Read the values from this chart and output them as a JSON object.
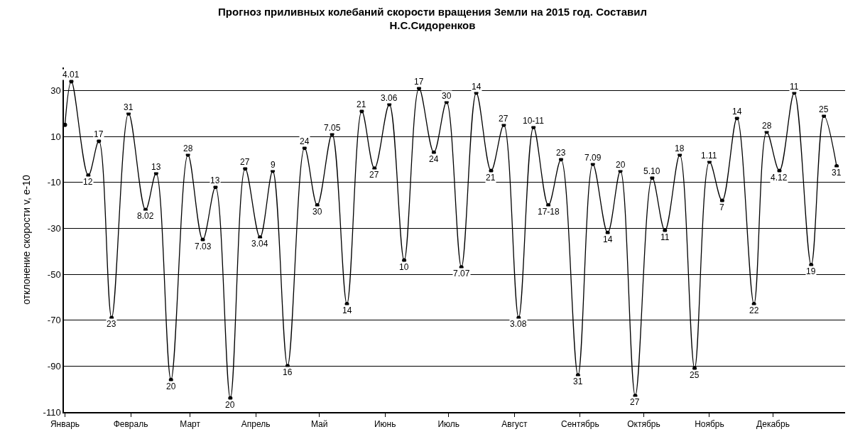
{
  "chart_data": {
    "type": "line",
    "title": "Прогноз приливных колебаний скорости вращения Земли на 2015 год. Составил\nН.С.Сидоренков",
    "ylabel": "отклонение скорости v, е-10",
    "categories": [
      "Январь",
      null,
      null,
      null,
      null,
      null,
      null,
      null,
      null,
      null,
      null,
      null,
      null,
      null,
      null,
      null,
      null,
      null,
      null,
      null,
      null,
      null,
      null,
      null,
      null,
      null,
      null,
      null,
      null,
      null,
      null,
      "Февраль",
      null,
      null,
      null,
      null,
      null,
      null,
      null,
      null,
      null,
      null,
      null,
      null,
      null,
      null,
      null,
      null,
      null,
      null,
      null,
      null,
      null,
      null,
      null,
      null,
      null,
      null,
      null,
      "Март",
      null,
      null,
      null,
      null,
      null,
      null,
      null,
      null,
      null,
      null,
      null,
      null,
      null,
      null,
      null,
      null,
      null,
      null,
      null,
      null,
      null,
      null,
      null,
      null,
      null,
      null,
      null,
      null,
      null,
      null,
      "Апрель",
      null,
      null,
      null,
      null,
      null,
      null,
      null,
      null,
      null,
      null,
      null,
      null,
      null,
      null,
      null,
      null,
      null,
      null,
      null,
      null,
      null,
      null,
      null,
      null,
      null,
      null,
      null,
      null,
      null,
      "Май",
      null,
      null,
      null,
      null,
      null,
      null,
      null,
      null,
      null,
      null,
      null,
      null,
      null,
      null,
      null,
      null,
      null,
      null,
      null,
      null,
      null,
      null,
      null,
      null,
      null,
      null,
      null,
      null,
      null,
      null,
      "Июнь",
      null,
      null,
      null,
      null,
      null,
      null,
      null,
      null,
      null,
      null,
      null,
      null,
      null,
      null,
      null,
      null,
      null,
      null,
      null,
      null,
      null,
      null,
      null,
      null,
      null,
      null,
      null,
      null,
      null,
      "Июль",
      null,
      null,
      null,
      null,
      null,
      null,
      null,
      null,
      null,
      null,
      null,
      null,
      null,
      null,
      null,
      null,
      null,
      null,
      null,
      null,
      null,
      null,
      null,
      null,
      null,
      null,
      null,
      null,
      null,
      null,
      "Август",
      null,
      null,
      null,
      null,
      null,
      null,
      null,
      null,
      null,
      null,
      null,
      null,
      null,
      null,
      null,
      null,
      null,
      null,
      null,
      null,
      null,
      null,
      null,
      null,
      null,
      null,
      null,
      null,
      null,
      null,
      "Сентябрь",
      null,
      null,
      null,
      null,
      null,
      null,
      null,
      null,
      null,
      null,
      null,
      null,
      null,
      null,
      null,
      null,
      null,
      null,
      null,
      null,
      null,
      null,
      null,
      null,
      null,
      null,
      null,
      null,
      null,
      "Октябрь",
      null,
      null,
      null,
      null,
      null,
      null,
      null,
      null,
      null,
      null,
      null,
      null,
      null,
      null,
      null,
      null,
      null,
      null,
      null,
      null,
      null,
      null,
      null,
      null,
      null,
      null,
      null,
      null,
      null,
      null,
      "Ноябрь",
      null,
      null,
      null,
      null,
      null,
      null,
      null,
      null,
      null,
      null,
      null,
      null,
      null,
      null,
      null,
      null,
      null,
      null,
      null,
      null,
      null,
      null,
      null,
      null,
      null,
      null,
      null,
      null,
      null,
      "Декабрь",
      null,
      null,
      null,
      null,
      null,
      null,
      null,
      null,
      null,
      null,
      null,
      null,
      null,
      null,
      null,
      null,
      null,
      null,
      null,
      null,
      null,
      null,
      null,
      null,
      null,
      null,
      null,
      null,
      null,
      null
    ],
    "series": [
      {
        "color": "#000000",
        "values": [
          15,
          null,
          null,
          34,
          null,
          null,
          null,
          null,
          null,
          null,
          null,
          -7,
          null,
          null,
          null,
          null,
          8,
          null,
          null,
          null,
          null,
          null,
          -69,
          null,
          null,
          null,
          null,
          null,
          null,
          null,
          20,
          null,
          null,
          null,
          null,
          null,
          null,
          null,
          -22,
          null,
          null,
          null,
          null,
          -6,
          null,
          null,
          null,
          null,
          null,
          null,
          -96,
          null,
          null,
          null,
          null,
          null,
          null,
          null,
          2,
          null,
          null,
          null,
          null,
          null,
          null,
          -35,
          null,
          null,
          null,
          null,
          null,
          -12,
          null,
          null,
          null,
          null,
          null,
          null,
          -104,
          null,
          null,
          null,
          null,
          null,
          null,
          -4,
          null,
          null,
          null,
          null,
          null,
          null,
          -34,
          null,
          null,
          null,
          null,
          null,
          -5,
          null,
          null,
          null,
          null,
          null,
          null,
          -90,
          null,
          null,
          null,
          null,
          null,
          null,
          null,
          5,
          null,
          null,
          null,
          null,
          null,
          -20,
          null,
          null,
          null,
          null,
          null,
          null,
          11,
          null,
          null,
          null,
          null,
          null,
          null,
          -63,
          null,
          null,
          null,
          null,
          null,
          null,
          21,
          null,
          null,
          null,
          null,
          null,
          -4,
          null,
          null,
          null,
          null,
          null,
          null,
          24,
          null,
          null,
          null,
          null,
          null,
          null,
          -44,
          null,
          null,
          null,
          null,
          null,
          null,
          31,
          null,
          null,
          null,
          null,
          null,
          null,
          3,
          null,
          null,
          null,
          null,
          null,
          25,
          null,
          null,
          null,
          null,
          null,
          null,
          -47,
          null,
          null,
          null,
          null,
          null,
          null,
          29,
          null,
          null,
          null,
          null,
          null,
          null,
          -5,
          null,
          null,
          null,
          null,
          null,
          15,
          null,
          null,
          null,
          null,
          null,
          null,
          -69,
          null,
          null,
          null,
          null,
          null,
          null,
          14,
          null,
          null,
          null,
          null,
          null,
          null,
          -20,
          null,
          null,
          null,
          null,
          null,
          0,
          null,
          null,
          null,
          null,
          null,
          null,
          null,
          -94,
          null,
          null,
          null,
          null,
          null,
          null,
          -2,
          null,
          null,
          null,
          null,
          null,
          null,
          -32,
          null,
          null,
          null,
          null,
          null,
          -5,
          null,
          null,
          null,
          null,
          null,
          null,
          -103,
          null,
          null,
          null,
          null,
          null,
          null,
          null,
          -8,
          null,
          null,
          null,
          null,
          null,
          -31,
          null,
          null,
          null,
          null,
          null,
          null,
          2,
          null,
          null,
          null,
          null,
          null,
          null,
          -91,
          null,
          null,
          null,
          null,
          null,
          null,
          -1,
          null,
          null,
          null,
          null,
          null,
          -18,
          null,
          null,
          null,
          null,
          null,
          null,
          18,
          null,
          null,
          null,
          null,
          null,
          null,
          null,
          -63,
          null,
          null,
          null,
          null,
          null,
          12,
          null,
          null,
          null,
          null,
          null,
          -5,
          null,
          null,
          null,
          null,
          null,
          null,
          29,
          null,
          null,
          null,
          null,
          null,
          null,
          null,
          -46,
          null,
          null,
          null,
          null,
          null,
          19,
          null,
          null,
          null,
          null,
          null,
          -3
        ]
      }
    ],
    "annotations": [
      {
        "text": "4.01",
        "y": 34
      },
      {
        "text": "12",
        "y": -7
      },
      {
        "text": "17",
        "y": 8
      },
      {
        "text": "23",
        "y": -69
      },
      {
        "text": "31",
        "y": 20
      },
      {
        "text": "8.02",
        "y": -22
      },
      {
        "text": "13",
        "y": -6
      },
      {
        "text": "20",
        "y": -96
      },
      {
        "text": "28",
        "y": 2
      },
      {
        "text": "7.03",
        "y": -35
      },
      {
        "text": "13",
        "y": -12
      },
      {
        "text": "20",
        "y": -104
      },
      {
        "text": "27",
        "y": -4
      },
      {
        "text": "3.04",
        "y": -34
      },
      {
        "text": "9",
        "y": -5
      },
      {
        "text": "16",
        "y": -90
      },
      {
        "text": "24",
        "y": 5
      },
      {
        "text": "30",
        "y": -20
      },
      {
        "text": "7.05",
        "y": 11
      },
      {
        "text": "14",
        "y": -63
      },
      {
        "text": "21",
        "y": 21
      },
      {
        "text": "27",
        "y": -4
      },
      {
        "text": "3.06",
        "y": 24
      },
      {
        "text": "10",
        "y": -44
      },
      {
        "text": "17",
        "y": 31
      },
      {
        "text": "24",
        "y": 3
      },
      {
        "text": "30",
        "y": 25
      },
      {
        "text": "7.07",
        "y": -47
      },
      {
        "text": "14",
        "y": 29
      },
      {
        "text": "21",
        "y": -5
      },
      {
        "text": "27",
        "y": 15
      },
      {
        "text": "3.08",
        "y": -69
      },
      {
        "text": "10-11",
        "y": 14
      },
      {
        "text": "17-18",
        "y": -20
      },
      {
        "text": "23",
        "y": 0
      },
      {
        "text": "31",
        "y": -94
      },
      {
        "text": "7.09",
        "y": -2
      },
      {
        "text": "14",
        "y": -32
      },
      {
        "text": "20",
        "y": -5
      },
      {
        "text": "27",
        "y": -103
      },
      {
        "text": "5.10",
        "y": -8
      },
      {
        "text": "11",
        "y": -31
      },
      {
        "text": "18",
        "y": 2
      },
      {
        "text": "25",
        "y": -91
      },
      {
        "text": "1.11",
        "y": -1
      },
      {
        "text": "7",
        "y": -18
      },
      {
        "text": "14",
        "y": 18
      },
      {
        "text": "22",
        "y": -63
      },
      {
        "text": "28",
        "y": 12
      },
      {
        "text": "4.12",
        "y": -5
      },
      {
        "text": "11",
        "y": 29
      },
      {
        "text": "19",
        "y": -46
      },
      {
        "text": "25",
        "y": 19
      },
      {
        "text": "31",
        "y": -3
      }
    ],
    "ylim": [
      -110,
      40
    ],
    "yticks": [
      30,
      10,
      -10,
      -30,
      -50,
      -70,
      -90,
      -110
    ],
    "grid": "y",
    "marker": "circle",
    "line_style": "solid"
  }
}
